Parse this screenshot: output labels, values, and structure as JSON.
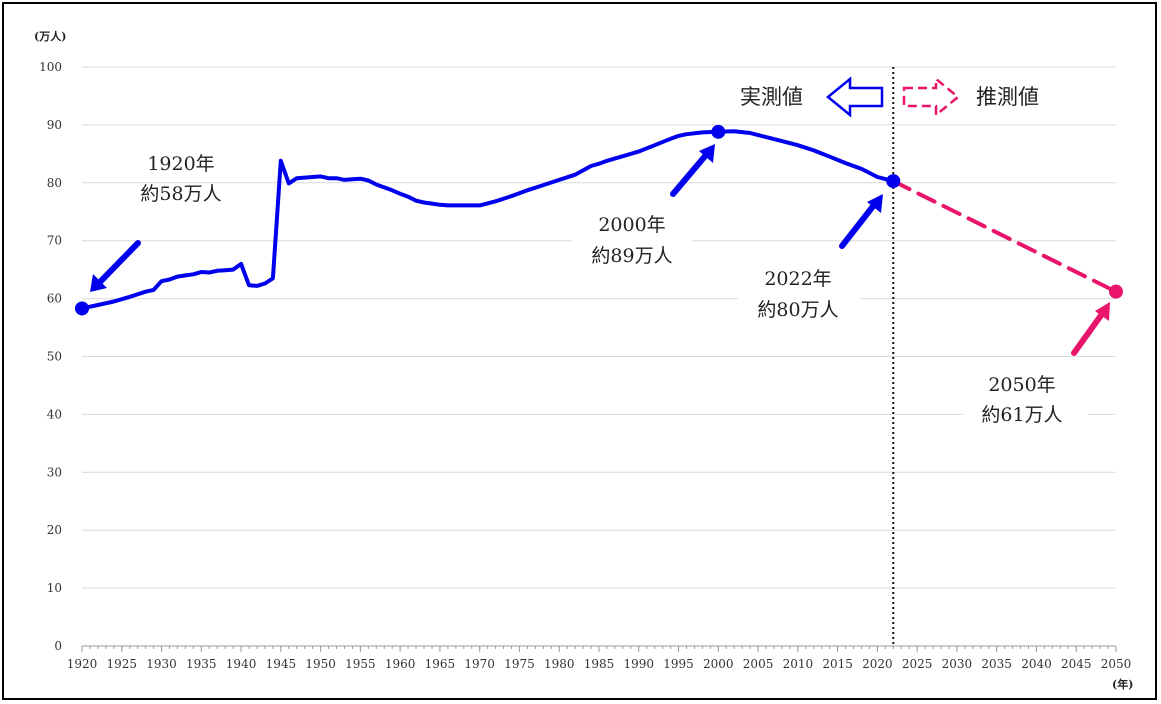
{
  "chart_data": {
    "type": "line",
    "y_unit": "(万人)",
    "x_unit": "(年)",
    "xlim": [
      1920,
      2050
    ],
    "ylim": [
      0,
      100
    ],
    "grid": true,
    "x_ticks": [
      1920,
      1925,
      1930,
      1935,
      1940,
      1945,
      1950,
      1955,
      1960,
      1965,
      1970,
      1975,
      1980,
      1985,
      1990,
      1995,
      2000,
      2005,
      2010,
      2015,
      2020,
      2025,
      2030,
      2035,
      2040,
      2045,
      2050
    ],
    "y_ticks": [
      0,
      10,
      20,
      30,
      40,
      50,
      60,
      70,
      80,
      90,
      100
    ],
    "divider_year": 2022,
    "legend": {
      "actual_label": "実測値",
      "estimate_label": "推測値",
      "actual_color": "#0000ee",
      "estimate_color": "#e8156a"
    },
    "series": [
      {
        "style": "actual",
        "color": "#0000ee",
        "x": [
          1920,
          1922,
          1924,
          1926,
          1928,
          1929,
          1930,
          1931,
          1932,
          1933,
          1934,
          1935,
          1936,
          1937,
          1938,
          1939,
          1940,
          1941,
          1942,
          1943,
          1944,
          1945,
          1946,
          1947,
          1948,
          1949,
          1950,
          1951,
          1952,
          1953,
          1954,
          1955,
          1956,
          1957,
          1958,
          1959,
          1960,
          1961,
          1962,
          1963,
          1964,
          1965,
          1966,
          1967,
          1968,
          1969,
          1970,
          1972,
          1974,
          1976,
          1978,
          1980,
          1982,
          1984,
          1985,
          1986,
          1988,
          1990,
          1992,
          1994,
          1995,
          1996,
          1998,
          2000,
          2002,
          2004,
          2006,
          2008,
          2010,
          2012,
          2014,
          2016,
          2018,
          2020,
          2022
        ],
        "y": [
          58.3,
          58.9,
          59.5,
          60.3,
          61.2,
          61.5,
          63.0,
          63.3,
          63.8,
          64.0,
          64.2,
          64.6,
          64.5,
          64.8,
          64.9,
          65.0,
          66.0,
          62.3,
          62.2,
          62.6,
          63.5,
          83.8,
          79.9,
          80.8,
          80.9,
          81.0,
          81.1,
          80.8,
          80.8,
          80.5,
          80.6,
          80.7,
          80.4,
          79.7,
          79.2,
          78.7,
          78.1,
          77.6,
          76.9,
          76.6,
          76.4,
          76.2,
          76.1,
          76.1,
          76.1,
          76.1,
          76.1,
          76.8,
          77.7,
          78.7,
          79.6,
          80.5,
          81.4,
          82.9,
          83.3,
          83.8,
          84.6,
          85.4,
          86.5,
          87.6,
          88.1,
          88.4,
          88.7,
          88.8,
          88.9,
          88.6,
          87.9,
          87.2,
          86.5,
          85.6,
          84.5,
          83.4,
          82.4,
          81.0,
          80.3
        ]
      },
      {
        "style": "estimate",
        "color": "#e8156a",
        "x": [
          2022,
          2050
        ],
        "y": [
          80.3,
          61.2
        ]
      }
    ],
    "markers": [
      {
        "x": 1920,
        "y": 58.3,
        "color": "#0000ee"
      },
      {
        "x": 2000,
        "y": 88.8,
        "color": "#0000ee"
      },
      {
        "x": 2022,
        "y": 80.3,
        "color": "#0000ee"
      },
      {
        "x": 2050,
        "y": 61.2,
        "color": "#e8156a"
      }
    ],
    "annotations": [
      {
        "id": "1920",
        "line1": "1920年",
        "line2": "約58万人",
        "color": "#0000ee"
      },
      {
        "id": "2000",
        "line1": "2000年",
        "line2": "約89万人",
        "color": "#0000ee"
      },
      {
        "id": "2022",
        "line1": "2022年",
        "line2": "約80万人",
        "color": "#0000ee"
      },
      {
        "id": "2050",
        "line1": "2050年",
        "line2": "約61万人",
        "color": "#e8156a"
      }
    ]
  }
}
